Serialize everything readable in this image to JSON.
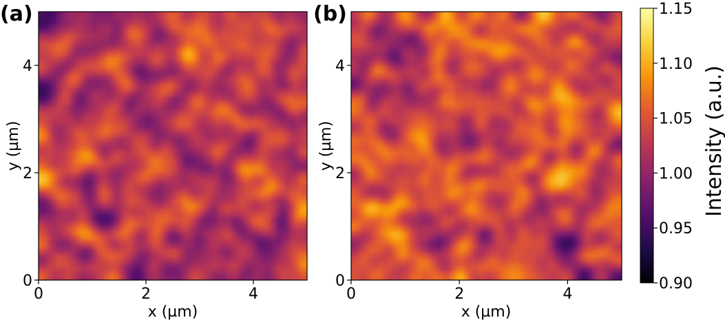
{
  "chart_data": [
    {
      "type": "heatmap",
      "panel_label": "(a)",
      "xlabel": "x (µm)",
      "ylabel": "y (µm)",
      "xlim": [
        0,
        5
      ],
      "ylim": [
        0,
        5
      ],
      "xticks": [
        0,
        2,
        4
      ],
      "yticks": [
        0,
        2,
        4
      ],
      "colormap": "inferno",
      "seed": 11
    },
    {
      "type": "heatmap",
      "panel_label": "(b)",
      "xlabel": "x (µm)",
      "ylabel": "y (µm)",
      "xlim": [
        0,
        5
      ],
      "ylim": [
        0,
        5
      ],
      "xticks": [
        0,
        2,
        4
      ],
      "yticks": [
        0,
        2,
        4
      ],
      "colormap": "inferno",
      "seed": 29
    }
  ],
  "colorbar": {
    "label": "Intensity (a.u.)",
    "range": [
      0.9,
      1.15
    ],
    "ticks": [
      "0.90",
      "0.95",
      "1.00",
      "1.05",
      "1.10",
      "1.15"
    ]
  }
}
